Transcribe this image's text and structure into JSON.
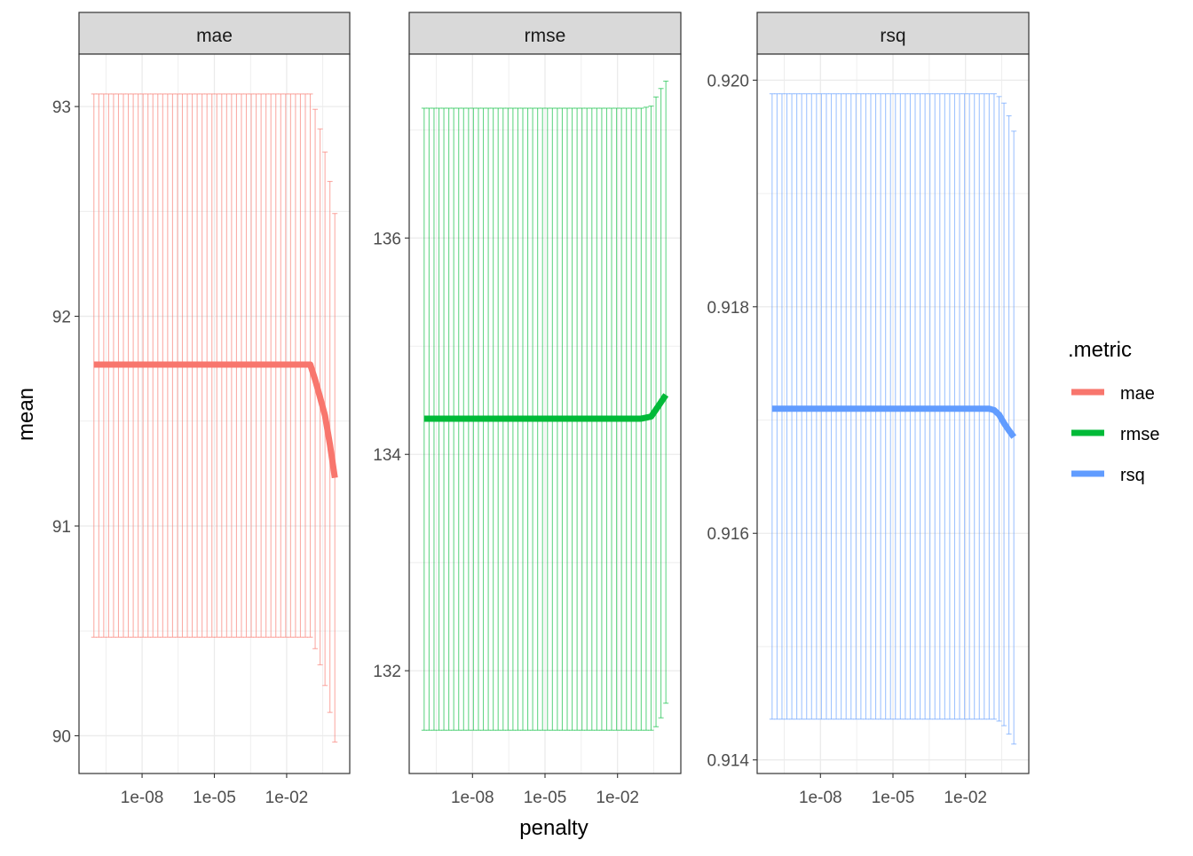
{
  "chart_data": {
    "type": "line",
    "facet_by": ".metric",
    "xlabel": "penalty",
    "ylabel": "mean",
    "x_scale": "log10",
    "x_ticks": [
      1e-08,
      1e-05,
      0.01
    ],
    "x_tick_labels": [
      "1e-08",
      "1e-05",
      "1e-02"
    ],
    "x_range": [
      1e-10,
      1
    ],
    "error_bars": true,
    "grid": true,
    "legend": {
      "title": ".metric",
      "placement": "right",
      "entries": [
        "mae",
        "rmse",
        "rsq"
      ]
    },
    "series": [
      {
        "name": "mae",
        "color": "#F8766D",
        "ylim": [
          89.82,
          93.25
        ],
        "y_ticks": [
          90,
          91,
          92,
          93
        ],
        "y_tick_labels": [
          "90",
          "91",
          "92",
          "93"
        ],
        "x": [
          1e-10,
          0.1,
          0.2,
          0.45,
          1.0
        ],
        "mean": [
          91.77,
          91.77,
          91.65,
          91.5,
          91.23
        ],
        "lower": [
          90.47,
          90.47,
          90.38,
          90.21,
          89.97
        ],
        "upper": [
          93.06,
          93.06,
          92.94,
          92.75,
          92.49
        ]
      },
      {
        "name": "rmse",
        "color": "#00BA38",
        "ylim": [
          131.05,
          137.7
        ],
        "y_ticks": [
          132,
          134,
          136
        ],
        "y_tick_labels": [
          "132",
          "134",
          "136"
        ],
        "x": [
          1e-10,
          0.1,
          0.25,
          0.5,
          1.0
        ],
        "mean": [
          134.33,
          134.33,
          134.35,
          134.45,
          134.55
        ],
        "lower": [
          131.45,
          131.45,
          131.45,
          131.5,
          131.7
        ],
        "upper": [
          137.2,
          137.2,
          137.22,
          137.35,
          137.45
        ]
      },
      {
        "name": "rsq",
        "color": "#619CFF",
        "ylim": [
          0.91388,
          0.92023
        ],
        "y_ticks": [
          0.914,
          0.916,
          0.918,
          0.92
        ],
        "y_tick_labels": [
          "0.914",
          "0.916",
          "0.918",
          "0.920"
        ],
        "x": [
          1e-10,
          0.1,
          0.2,
          0.45,
          1.0
        ],
        "mean": [
          0.9171,
          0.9171,
          0.91708,
          0.91695,
          0.91685
        ],
        "lower": [
          0.91436,
          0.91436,
          0.91436,
          0.91429,
          0.91414
        ],
        "upper": [
          0.91988,
          0.91988,
          0.91988,
          0.91978,
          0.91955
        ]
      }
    ]
  }
}
